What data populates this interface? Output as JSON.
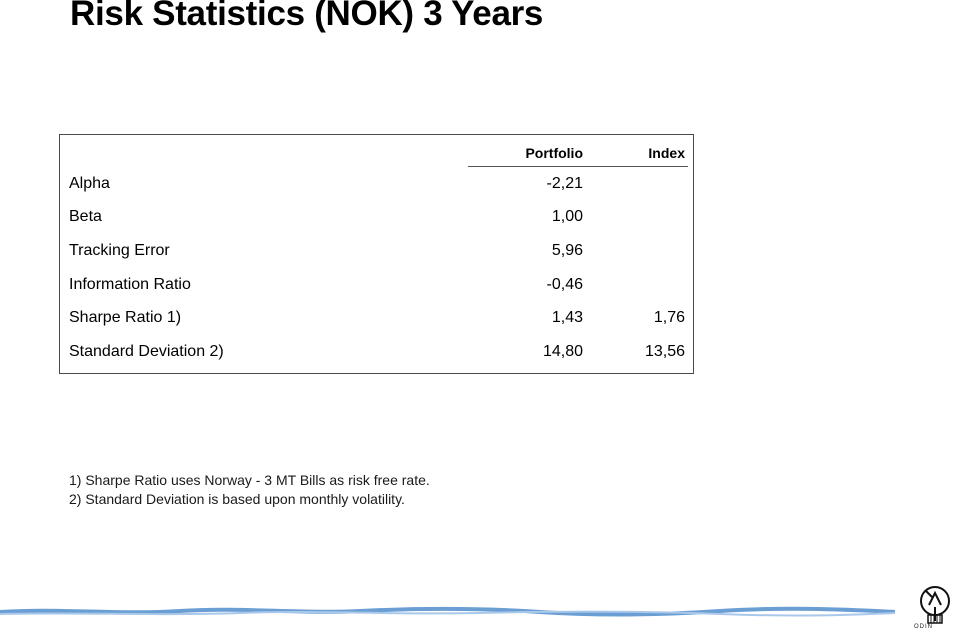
{
  "title": "Risk Statistics (NOK) 3 Years",
  "table": {
    "headers": {
      "portfolio": "Portfolio",
      "index": "Index"
    },
    "rows": [
      {
        "label": "Alpha",
        "portfolio": "-2,21",
        "index": ""
      },
      {
        "label": "Beta",
        "portfolio": "1,00",
        "index": ""
      },
      {
        "label": "Tracking Error",
        "portfolio": "5,96",
        "index": ""
      },
      {
        "label": "Information Ratio",
        "portfolio": "-0,46",
        "index": ""
      },
      {
        "label": "Sharpe Ratio 1)",
        "portfolio": "1,43",
        "index": "1,76"
      },
      {
        "label": "Standard Deviation 2)",
        "portfolio": "14,80",
        "index": "13,56"
      }
    ]
  },
  "footnotes": [
    "1) Sharpe Ratio uses Norway - 3 MT Bills as risk free rate.",
    "2) Standard Deviation is based upon monthly volatility."
  ],
  "logo": {
    "text": "ODIN",
    "icon": "odin-logo-icon"
  },
  "colors": {
    "wave": "#6b9fd4",
    "border": "#4a4a4a"
  }
}
